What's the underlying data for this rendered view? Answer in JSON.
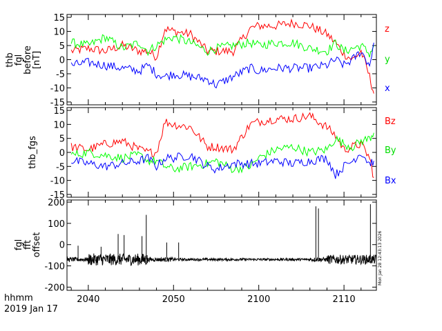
{
  "chart_data": [
    {
      "type": "line",
      "panel": "top",
      "ylabel": [
        "thb",
        "fgl",
        "before",
        "[nT]"
      ],
      "ylim": [
        -16,
        16
      ],
      "yticks": [
        -15,
        -10,
        -5,
        0,
        5,
        10,
        15
      ],
      "xlim": [
        2037.5,
        2113.8
      ],
      "series": [
        {
          "name": "z",
          "color": "#ff0000",
          "x": [
            2038,
            2040,
            2042,
            2044,
            2046,
            2047,
            2048,
            2049,
            2050,
            2052,
            2054,
            2055,
            2057,
            2059,
            2100,
            2102,
            2104,
            2106,
            2108,
            2109,
            2110,
            2111,
            2112,
            2113,
            2113.5
          ],
          "values": [
            3,
            4,
            3,
            5,
            3,
            3,
            1,
            11,
            10,
            9,
            3,
            3,
            3,
            11,
            12,
            12,
            13,
            12,
            9,
            6,
            2,
            0,
            3,
            -6,
            -12
          ]
        },
        {
          "name": "y",
          "color": "#00ff00",
          "x": [
            2038,
            2040,
            2042,
            2044,
            2046,
            2047,
            2048,
            2049,
            2050,
            2052,
            2054,
            2055,
            2057,
            2059,
            2100,
            2102,
            2104,
            2106,
            2108,
            2109,
            2110,
            2111,
            2112,
            2113,
            2113.5
          ],
          "values": [
            6,
            5,
            8,
            4,
            6,
            3,
            5,
            7,
            8,
            6,
            3,
            4,
            5,
            6,
            5,
            6,
            6,
            4,
            3,
            6,
            3,
            4,
            5,
            2,
            5
          ]
        },
        {
          "name": "x",
          "color": "#0000ff",
          "x": [
            2038,
            2040,
            2042,
            2044,
            2046,
            2047,
            2048,
            2049,
            2050,
            2052,
            2054,
            2055,
            2057,
            2059,
            2100,
            2102,
            2104,
            2106,
            2108,
            2109,
            2110,
            2111,
            2112,
            2113,
            2113.5
          ],
          "values": [
            -2,
            -1,
            -2,
            -3,
            -4,
            -2,
            -5,
            -6,
            -5,
            -6,
            -7,
            -9,
            -6,
            -3,
            -4,
            -3,
            -3,
            -3,
            -2,
            0,
            -2,
            0,
            3,
            -2,
            6
          ]
        }
      ]
    },
    {
      "type": "line",
      "panel": "middle",
      "ylabel": [
        "thb_fgs"
      ],
      "ylim": [
        -16,
        16
      ],
      "yticks": [
        -15,
        -10,
        -5,
        0,
        5,
        10,
        15
      ],
      "xlim": [
        2037.5,
        2113.8
      ],
      "series": [
        {
          "name": "Bz",
          "color": "#ff0000",
          "x": [
            2038,
            2040,
            2042,
            2044,
            2046,
            2047,
            2048,
            2049,
            2050,
            2052,
            2054,
            2055,
            2057,
            2059,
            2100,
            2102,
            2104,
            2106,
            2108,
            2109,
            2110,
            2111,
            2112,
            2113,
            2113.5
          ],
          "values": [
            2,
            1,
            3,
            4,
            1,
            0,
            0,
            11,
            10,
            9,
            2,
            2,
            1,
            10,
            11,
            12,
            12,
            13,
            9,
            6,
            1,
            2,
            3,
            -2,
            -9
          ]
        },
        {
          "name": "By",
          "color": "#00ff00",
          "x": [
            2038,
            2040,
            2042,
            2044,
            2046,
            2047,
            2048,
            2049,
            2050,
            2052,
            2054,
            2055,
            2057,
            2059,
            2100,
            2102,
            2104,
            2106,
            2108,
            2109,
            2110,
            2111,
            2112,
            2113,
            2113.5
          ],
          "values": [
            -1,
            0,
            -1,
            -2,
            -1,
            -3,
            -3,
            -5,
            -6,
            -5,
            -4,
            -3,
            -6,
            -5,
            -2,
            1,
            2,
            0,
            1,
            5,
            3,
            2,
            4,
            5,
            7
          ]
        },
        {
          "name": "Bx",
          "color": "#0000ff",
          "x": [
            2038,
            2040,
            2042,
            2044,
            2046,
            2047,
            2048,
            2049,
            2050,
            2052,
            2054,
            2055,
            2057,
            2059,
            2100,
            2102,
            2104,
            2106,
            2108,
            2109,
            2110,
            2111,
            2112,
            2113,
            2113.5
          ],
          "values": [
            -3,
            -4,
            -5,
            -4,
            -3,
            -2,
            -5,
            -2,
            -2,
            -1,
            -5,
            -6,
            -4,
            -4,
            -4,
            -3,
            -4,
            -3,
            -2,
            -8,
            -5,
            -3,
            0,
            -4,
            -3
          ]
        }
      ]
    },
    {
      "type": "line",
      "panel": "bottom",
      "ylabel": [
        "fgl",
        "fft",
        "offset"
      ],
      "ylim": [
        -215,
        210
      ],
      "yticks": [
        -200,
        -100,
        0,
        100,
        200
      ],
      "xlim": [
        2037.5,
        2113.8
      ],
      "xticks": [
        2040,
        2050,
        2100,
        2110
      ],
      "baseline": -70,
      "series": [
        {
          "name": "offset",
          "color": "#000000",
          "spikes_x": [
            2038.8,
            2041.5,
            2043.5,
            2044.2,
            2046.3,
            2046.8,
            2049.2,
            2050.6,
            2106.7,
            2107.0,
            2113.1
          ],
          "spikes_y": [
            -5,
            -10,
            50,
            45,
            40,
            140,
            10,
            10,
            180,
            170,
            190
          ]
        }
      ]
    }
  ],
  "legend": {
    "top": [
      "z",
      "y",
      "x"
    ],
    "middle": [
      "Bz",
      "By",
      "Bx"
    ]
  },
  "x_axis": {
    "tick_labels": [
      "2040",
      "2050",
      "2100",
      "2110"
    ],
    "label_line1": "hhmm",
    "label_line2": "2019 Jan 17"
  },
  "stamp": "Mon Jan 28 12:43:13 2026",
  "colors": {
    "red": "#ff0000",
    "green": "#00ff00",
    "blue": "#0000ff",
    "black": "#000000"
  }
}
